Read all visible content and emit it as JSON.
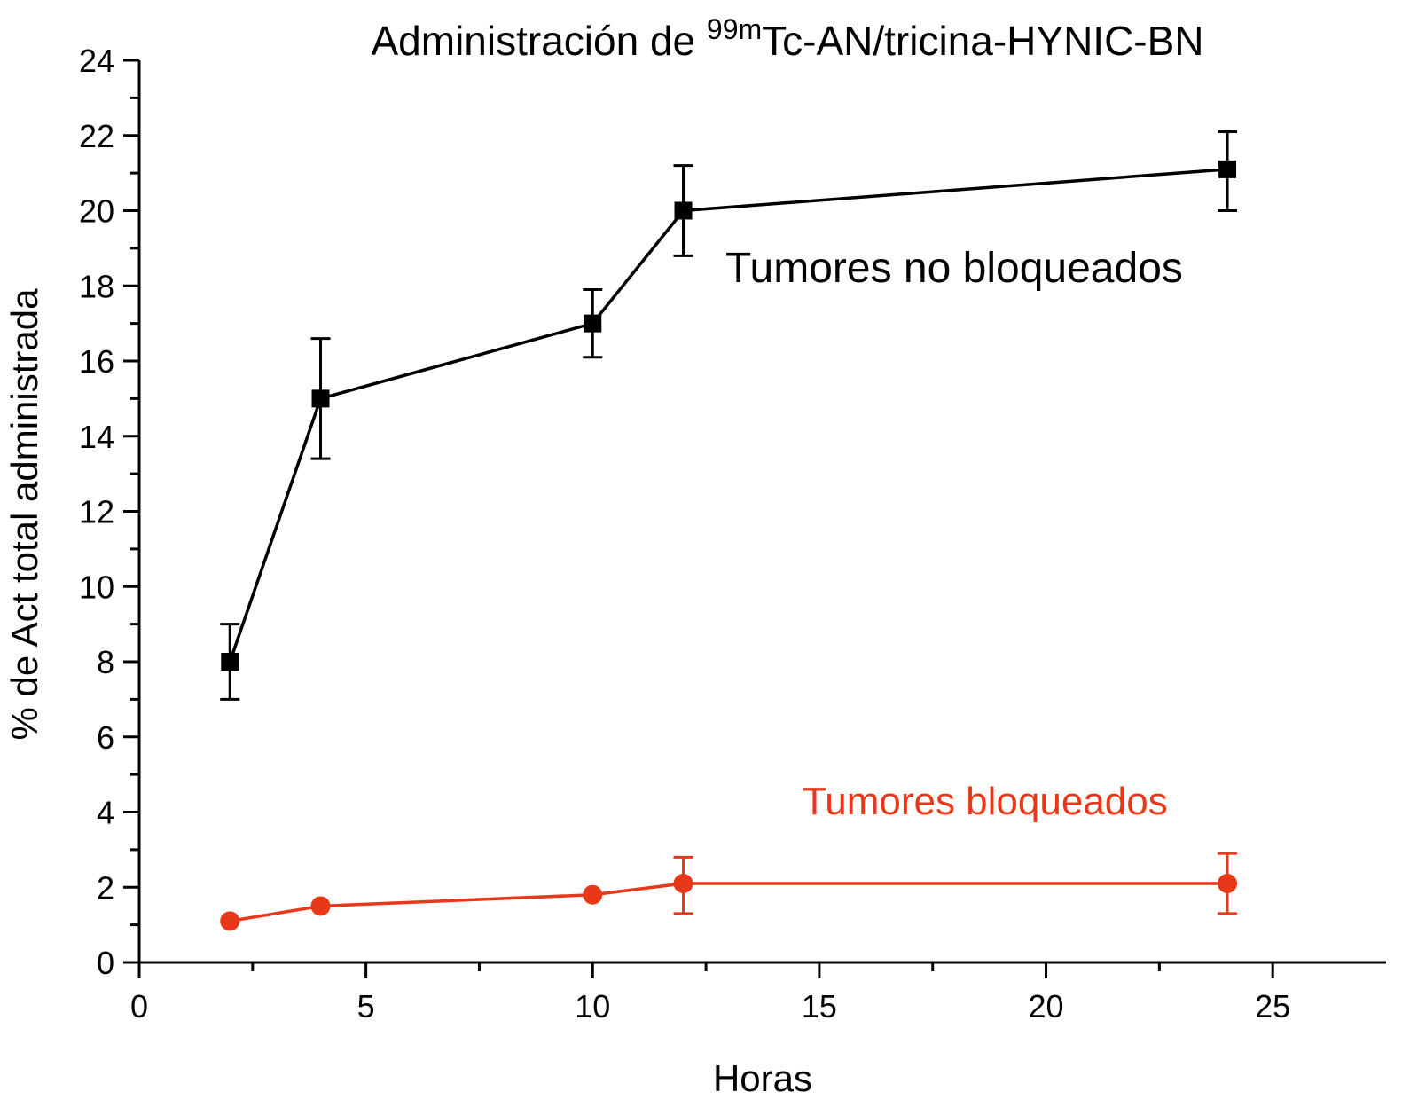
{
  "chart_data": {
    "type": "line",
    "title_main": "Administración de ",
    "title_sup": "99m",
    "title_rest": "Tc-AN/tricina-HYNIC-BN",
    "xlabel": "Horas",
    "ylabel": "% de Act total administrada",
    "xlim": [
      0,
      27.5
    ],
    "ylim": [
      0,
      24
    ],
    "xticks": [
      0,
      5,
      10,
      15,
      20,
      25
    ],
    "xtick_labels": [
      "0",
      "5",
      "10",
      "15",
      "20",
      "25"
    ],
    "yticks": [
      0,
      2,
      4,
      6,
      8,
      10,
      12,
      14,
      16,
      18,
      20,
      22,
      24
    ],
    "ytick_labels": [
      "0",
      "2",
      "4",
      "6",
      "8",
      "10",
      "12",
      "14",
      "16",
      "18",
      "20",
      "22",
      "24"
    ],
    "grid": false,
    "series": [
      {
        "name": "Tumores no bloqueados",
        "color": "#000000",
        "marker": "square",
        "x": [
          2,
          4,
          10,
          12,
          24
        ],
        "y": [
          8.0,
          15.0,
          17.0,
          20.0,
          21.1
        ],
        "err_upper": [
          9.0,
          16.6,
          17.9,
          21.2,
          22.1
        ],
        "err_lower": [
          7.0,
          13.4,
          16.1,
          18.8,
          20.0
        ]
      },
      {
        "name": "Tumores bloqueados",
        "color": "#e8381a",
        "marker": "circle",
        "x": [
          2,
          4,
          10,
          12,
          24
        ],
        "y": [
          1.1,
          1.5,
          1.8,
          2.1,
          2.1
        ],
        "err_upper": [
          null,
          null,
          null,
          2.8,
          2.9
        ],
        "err_lower": [
          null,
          null,
          null,
          1.3,
          1.3
        ]
      }
    ]
  }
}
